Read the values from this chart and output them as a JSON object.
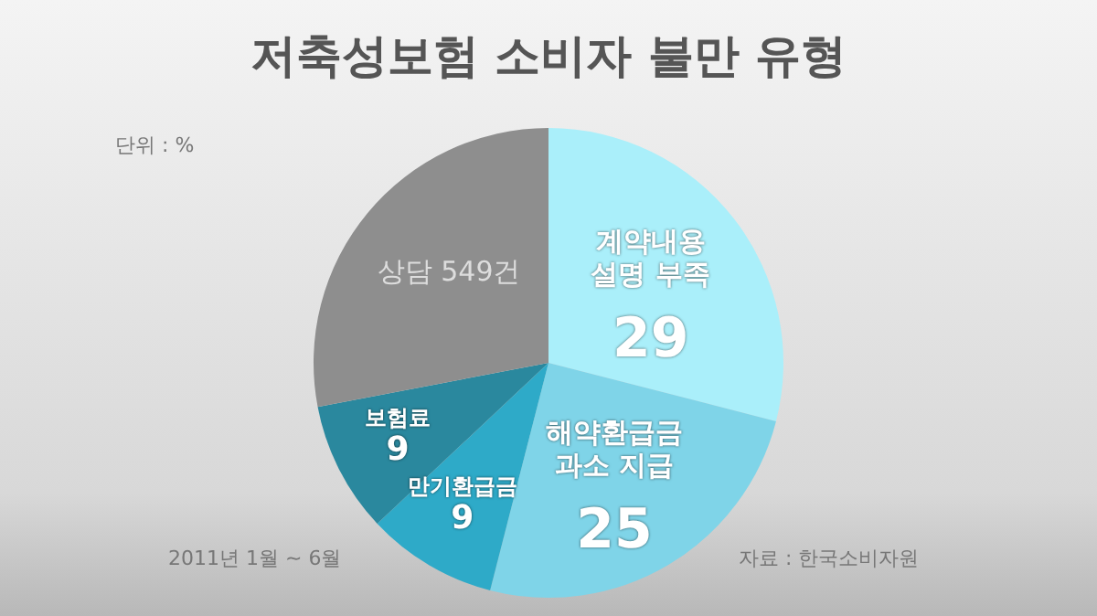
{
  "chart_data": {
    "type": "pie",
    "title": "저축성보험 소비자 불만 유형",
    "categories": [
      "계약내용 설명 부족",
      "해약환급금 과소 지급",
      "만기환급금",
      "보험료",
      null
    ],
    "values": [
      29,
      25,
      9,
      9,
      28
    ],
    "colors": [
      "#aaeffa",
      "#7fd4e8",
      "#2eaac8",
      "#2a889e",
      "#8e8e8e"
    ],
    "value_labels": [
      "29",
      "25",
      "9",
      "9",
      null
    ],
    "legend": false,
    "annotations": [
      "단위 : %",
      "상담 549건",
      "2011년 1월 ~ 6월",
      "자료 : 한국소비자원"
    ]
  }
}
